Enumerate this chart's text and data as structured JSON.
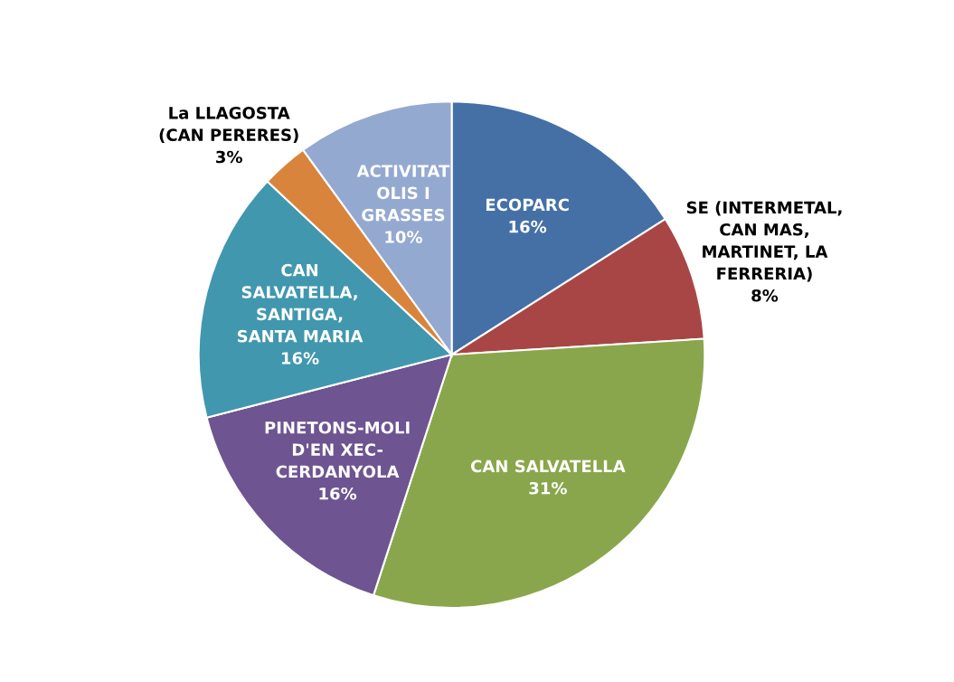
{
  "chart_data": {
    "type": "pie",
    "categories": [
      "ECOPARC",
      "SE (INTERMETAL,\nCAN MAS,\nMARTINET, LA\nFERRERIA)",
      "CAN SALVATELLA",
      "PINETONS-MOLI\nD'EN XEC-\nCERDANYOLA",
      "CAN\nSALVATELLA,\nSANTIGA,\nSANTA MARIA",
      "La LLAGOSTA\n(CAN PERERES)",
      "ACTIVITAT\nOLIS I\nGRASSES"
    ],
    "values": [
      16,
      8,
      31,
      16,
      16,
      3,
      10
    ],
    "colors": [
      "#4470a6",
      "#a84646",
      "#8aa64c",
      "#6e5490",
      "#4197ae",
      "#d9843c",
      "#94a9d0"
    ],
    "value_labels": [
      "16%",
      "8%",
      "31%",
      "16%",
      "16%",
      "3%",
      "10%"
    ]
  }
}
